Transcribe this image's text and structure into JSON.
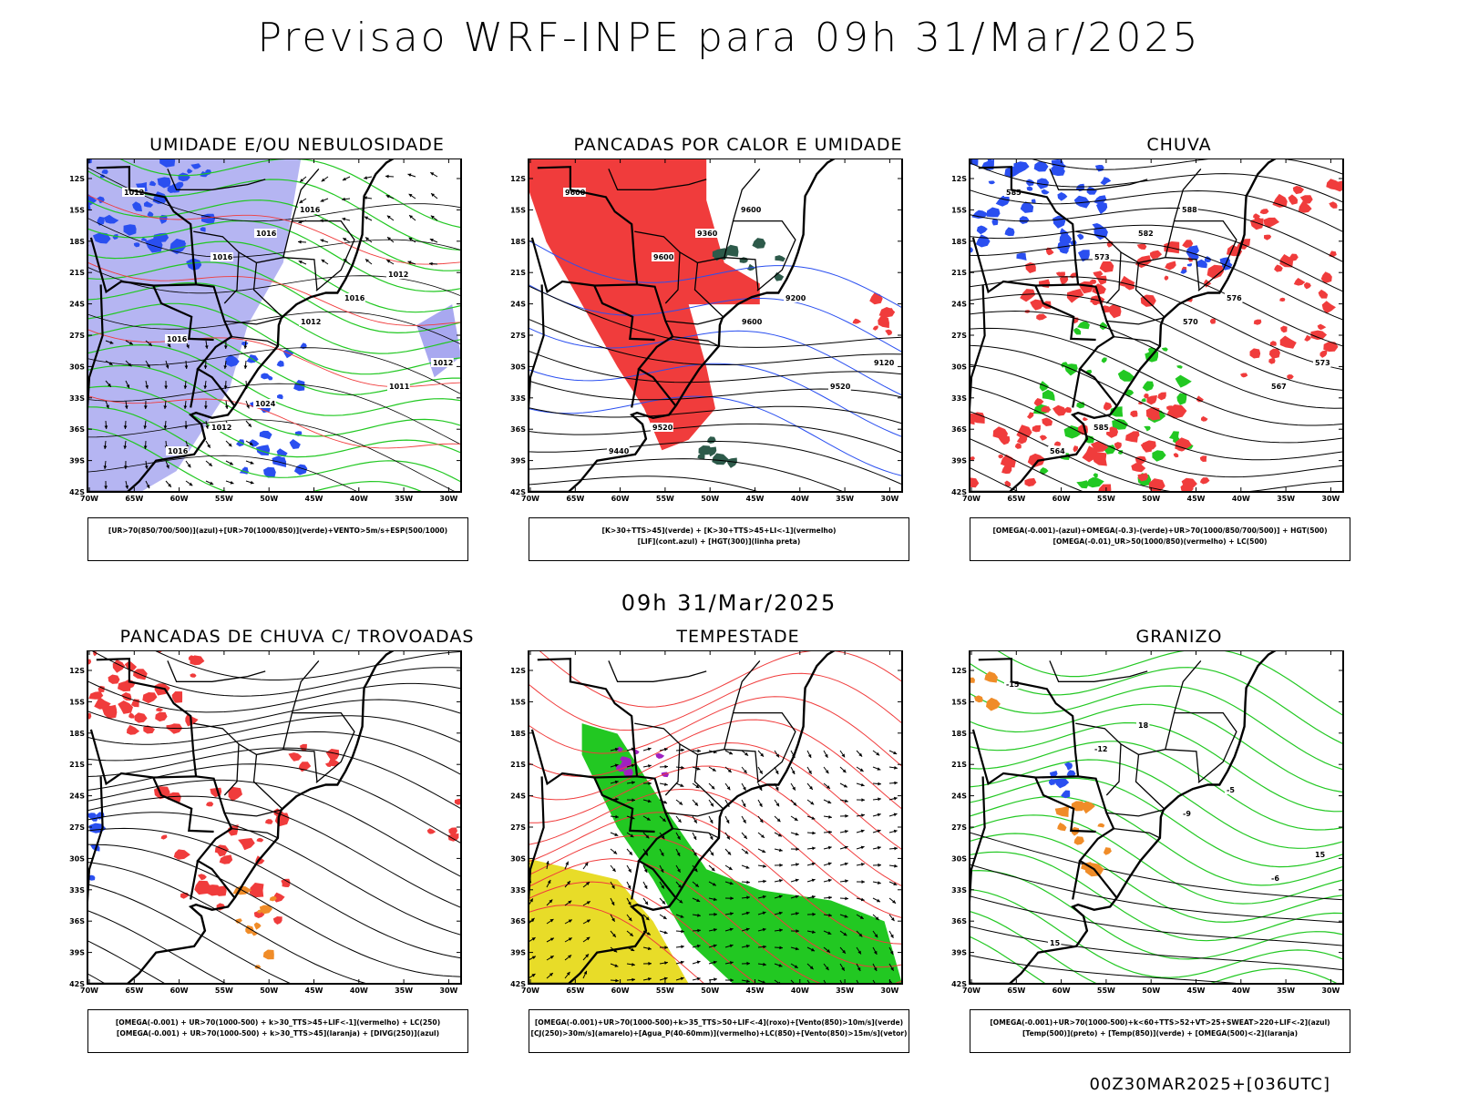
{
  "title": "Previsao WRF-INPE  para 09h 31/Mar/2025",
  "mid_time": "09h 31/Mar/2025",
  "footer": "00Z30MAR2025+[036UTC]",
  "axis": {
    "lat_ticks": [
      "12S",
      "15S",
      "18S",
      "21S",
      "24S",
      "27S",
      "30S",
      "33S",
      "36S",
      "39S",
      "42S"
    ],
    "lon_ticks": [
      "70W",
      "65W",
      "60W",
      "55W",
      "50W",
      "45W",
      "40W",
      "35W",
      "30W"
    ]
  },
  "panels": [
    {
      "title": "UMIDADE E/OU NEBULOSIDADE",
      "legend": [
        "[UR>70(850/700/500)](azul)+[UR>70(1000/850)](verde)+VENTO>5m/s+ESP(500/1000)"
      ],
      "contour_labels": [
        "1012",
        "1016",
        "1012",
        "1011",
        "1016",
        "1016",
        "1016",
        "1012",
        "1012",
        "1016",
        "1012",
        "1016",
        "1024"
      ]
    },
    {
      "title": "PANCADAS POR CALOR E UMIDADE",
      "legend": [
        "[K>30+TTS>45](verde) + [K>30+TTS>45+LI<-1](vermelho)",
        "[LIF](cont.azul) + [HGT(300)](linha preta)"
      ],
      "contour_labels": [
        "9600",
        "9600",
        "9600",
        "9520",
        "9440",
        "9360",
        "9200",
        "9120",
        "9520",
        "9600"
      ]
    },
    {
      "title": "CHUVA",
      "legend": [
        "[OMEGA(-0.001)-(azul)+OMEGA(-0.3)-(verde)+UR>70(1000/850/700/500)] + HGT(500)",
        "[OMEGA(-0.01)_UR>50(1000/850)(vermelho) + LC(500)"
      ],
      "contour_labels": [
        "585",
        "573",
        "570",
        "567",
        "564",
        "582",
        "576",
        "573",
        "585",
        "588"
      ]
    },
    {
      "title": "PANCADAS DE CHUVA C/ TROVOADAS",
      "legend": [
        "[OMEGA(-0.001) + UR>70(1000-500) + k>30_TTS>45+LIF<-1](vermelho) + LC(250)",
        "[OMEGA(-0.001) + UR>70(1000-500) + k>30_TTS>45](laranja) + [DIVG(250)](azul)"
      ],
      "contour_labels": []
    },
    {
      "title": "TEMPESTADE",
      "legend": [
        "[OMEGA(-0.001)+UR>70(1000-500)+k>35_TTS>50+LIF<-4](roxo)+[Vento(850)>10m/s](verde)",
        "[CJ(250)>30m/s](amarelo)+[Agua_P(40-60mm)](vermelho)+LC(850)+[Vento(850)>15m/s](vetor)"
      ],
      "contour_labels": []
    },
    {
      "title": "GRANIZO",
      "legend": [
        "[OMEGA(-0.001)+UR>70(1000-500)+k<60+TTS>52+VT>25+SWEAT>220+LIF<-2](azul)",
        "[Temp(500)](preto) + [Temp(850)](verde) + [OMEGA(500)<-2](laranja)"
      ],
      "contour_labels": [
        "-15",
        "-12",
        "-9",
        "-6",
        "15",
        "18",
        "-5",
        "15"
      ]
    }
  ],
  "colors": {
    "red": "#f03c3c",
    "blue": "#2a4ff0",
    "green": "#22c822",
    "lightblue": "#a8a8f0",
    "darkgreen": "#2d5a4a",
    "yellow": "#e8dc28",
    "purple": "#a020c0",
    "orange": "#f08c28"
  }
}
